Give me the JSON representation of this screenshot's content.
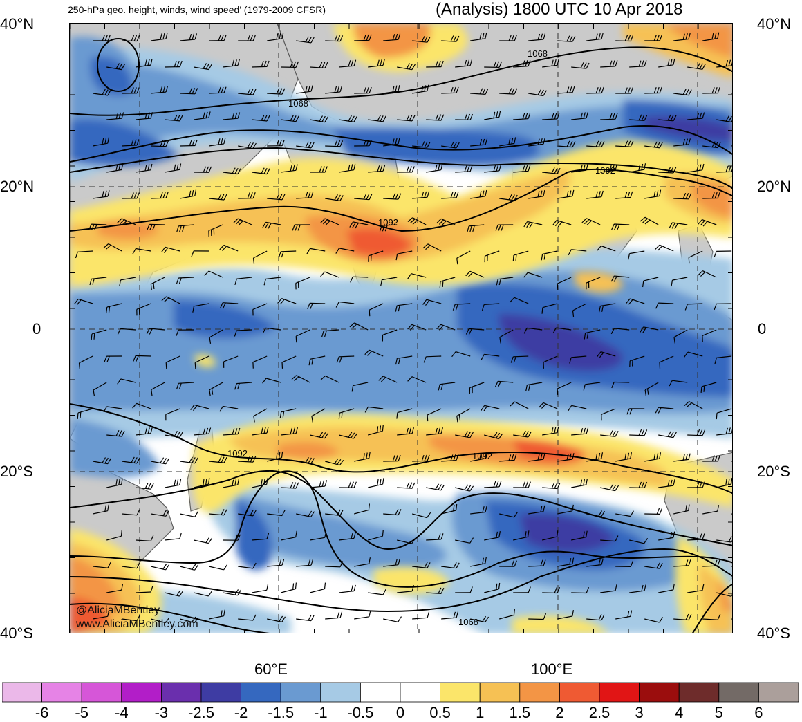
{
  "header": {
    "subtitle": "250-hPa geo. height, winds, wind speed’ (1979-2009 CFSR)",
    "title": "(Analysis) 1800 UTC 10 Apr 2018"
  },
  "axes": {
    "lat_labels_left": [
      "40°N",
      "20°N",
      "0",
      "20°S",
      "40°S"
    ],
    "lat_labels_right": [
      "40°N",
      "20°N",
      "0",
      "20°S",
      "40°S"
    ],
    "lon_labels": [
      "60°E",
      "100°E"
    ]
  },
  "contours": {
    "height_labels": [
      "1068",
      "1068",
      "1092",
      "1092",
      "1092",
      "1092",
      "1068"
    ]
  },
  "watermark": {
    "handle": "@AliciaMBentley",
    "url": "www.AliciaMBentley.com"
  },
  "colorbar": {
    "tick_labels": [
      "-6",
      "-5",
      "-4",
      "-3",
      "-2.5",
      "-2",
      "-1.5",
      "-1",
      "-0.5",
      "0",
      "0.5",
      "1",
      "1.5",
      "2",
      "2.5",
      "3",
      "4",
      "5",
      "6"
    ],
    "colors": [
      "#ebb8e9",
      "#e683e6",
      "#d656d8",
      "#b21ec8",
      "#6a2fad",
      "#3e3ca3",
      "#3568bf",
      "#6a9ad1",
      "#a6cae5",
      "#ffffff",
      "#ffffff",
      "#fbe56a",
      "#f6c154",
      "#f39545",
      "#ef5a33",
      "#e11515",
      "#9b0d0d",
      "#6e2c2b",
      "#736a66",
      "#ab9f9b"
    ]
  },
  "palette": {
    "land": "#c8c8c8",
    "coast": "#555555",
    "contour": "#000000"
  }
}
